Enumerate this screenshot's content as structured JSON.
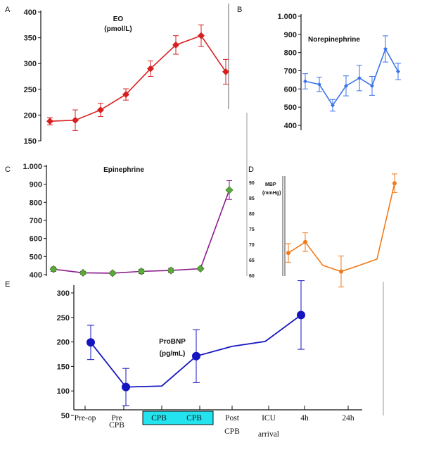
{
  "chart_data": [
    {
      "panel": "A",
      "type": "line",
      "title": "EO",
      "subtitle": "(pmol/L)",
      "color": "#d81f1f",
      "marker": "diamond",
      "yticks": [
        "150",
        "200",
        "250",
        "300",
        "350",
        "400"
      ],
      "ylim": [
        150,
        400
      ],
      "values": [
        188,
        190,
        210,
        240,
        290,
        336,
        354,
        284
      ],
      "errors": [
        7,
        20,
        13,
        11,
        15,
        18,
        21,
        24
      ]
    },
    {
      "panel": "B",
      "type": "line",
      "title": "Norepinephrine",
      "color": "#3b73ea",
      "marker": "diamond",
      "yticks": [
        "400",
        "500",
        "600",
        "700",
        "800",
        "900",
        "1.000"
      ],
      "ylim": [
        400,
        1000
      ],
      "values": [
        642,
        625,
        510,
        617,
        660,
        617,
        820,
        696
      ],
      "errors": [
        42,
        40,
        32,
        55,
        70,
        52,
        72,
        45
      ]
    },
    {
      "panel": "C",
      "type": "line",
      "title": "Epinephrine",
      "color": "#8b1a8b",
      "marker_fill": "#5aab3a",
      "marker": "diamond",
      "yticks": [
        "400",
        "500",
        "600",
        "700",
        "800",
        "900",
        "1.000"
      ],
      "ylim": [
        400,
        1000
      ],
      "values": [
        430,
        410,
        408,
        418,
        423,
        433,
        868
      ],
      "errors": [
        12,
        8,
        8,
        12,
        12,
        8,
        52
      ]
    },
    {
      "panel": "D",
      "type": "line",
      "title": "MBP",
      "subtitle": "(mmHg)",
      "color": "#f07a1a",
      "marker": "circle",
      "yticks": [
        "60",
        "65",
        "70",
        "75",
        "80",
        "85",
        "90"
      ],
      "ylim": [
        60,
        90
      ],
      "values": [
        67,
        70.5,
        63,
        61,
        63,
        65,
        89.5
      ],
      "errors": [
        3,
        3,
        0,
        5,
        0,
        0,
        3
      ]
    },
    {
      "panel": "E",
      "type": "line",
      "title": "ProBNP",
      "subtitle": "(pg/mL)",
      "color": "#1515c0",
      "marker": "circle",
      "yticks": [
        "50",
        "100",
        "150",
        "200",
        "250",
        "300"
      ],
      "ylim": [
        50,
        300
      ],
      "x_labels": [
        [
          "Pre-op"
        ],
        [
          "Pre",
          "CPB"
        ],
        [
          "CPB"
        ],
        [
          "CPB"
        ],
        [
          "Post",
          "CPB"
        ],
        [
          "ICU",
          "arrival"
        ],
        [
          "4h"
        ],
        [
          "24h"
        ]
      ],
      "values": [
        199,
        108,
        110,
        171,
        191,
        201,
        255
      ],
      "errors": [
        35,
        38,
        0,
        54,
        0,
        0,
        70
      ],
      "highlight_color": "#22e3ee"
    }
  ]
}
